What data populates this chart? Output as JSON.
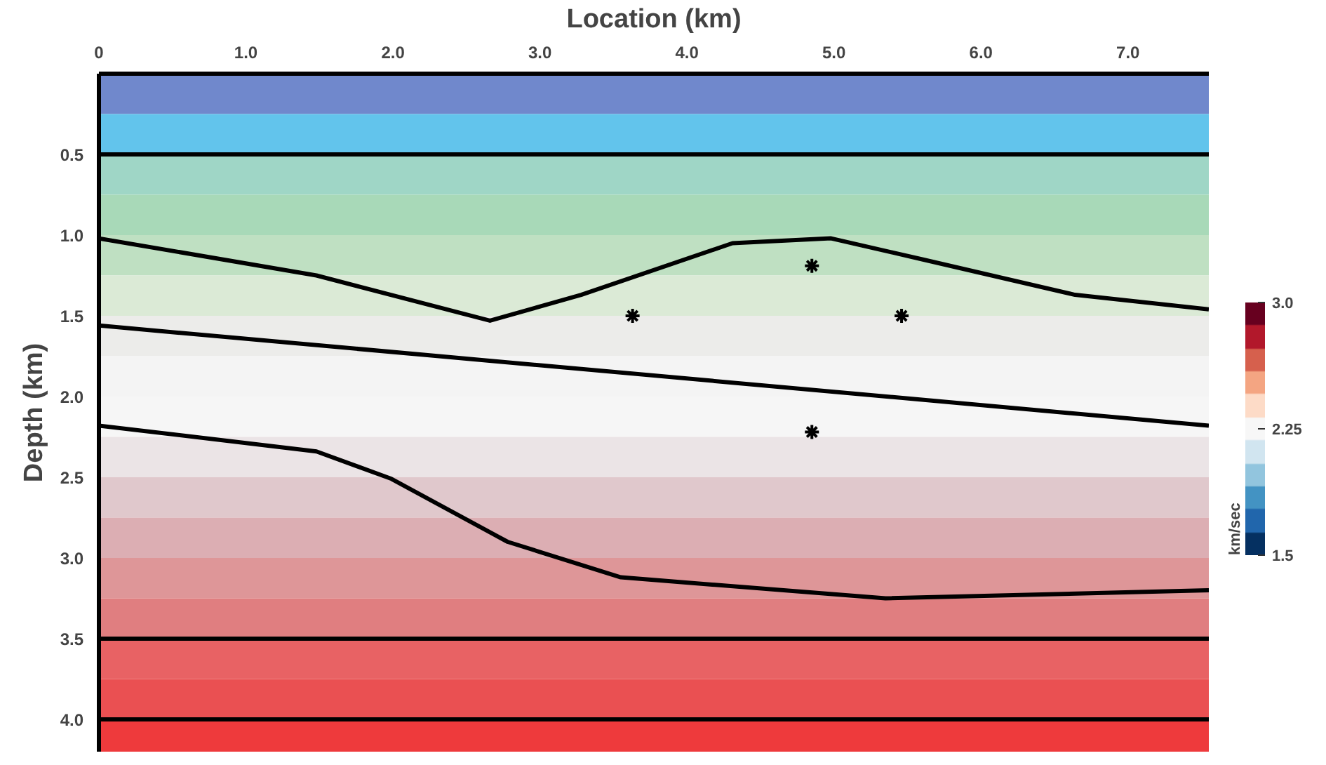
{
  "chart_data": {
    "type": "line",
    "xlabel": "Location (km)",
    "ylabel": "Depth (km)",
    "clabel": "km/sec",
    "xlim": [
      0,
      7.55
    ],
    "ylim": [
      4.2,
      0
    ],
    "xticks": [
      {
        "value": 0,
        "label": "0"
      },
      {
        "value": 1,
        "label": "1.0"
      },
      {
        "value": 2,
        "label": "2.0"
      },
      {
        "value": 3,
        "label": "3.0"
      },
      {
        "value": 4,
        "label": "4.0"
      },
      {
        "value": 5,
        "label": "5.0"
      },
      {
        "value": 6,
        "label": "6.0"
      },
      {
        "value": 7,
        "label": "7.0"
      }
    ],
    "yticks": [
      0.5,
      {
        "value": 1,
        "label": "1.0"
      },
      1.5,
      {
        "value": 2,
        "label": "2.0"
      },
      2.5,
      {
        "value": 3,
        "label": "3.0"
      },
      3.5,
      {
        "value": 4,
        "label": "4.0"
      }
    ],
    "clim": [
      1.5,
      3.0
    ],
    "cticks": [
      1.5,
      2.25,
      {
        "value": 3,
        "label": "3.0"
      }
    ],
    "grid": false,
    "line_style": "solid",
    "series": [
      {
        "color": "#000000",
        "x": [
          0,
          7.55
        ],
        "values": [
          0.5,
          0.5
        ]
      },
      {
        "color": "#000000",
        "x": [
          0,
          1.48,
          2.66,
          3.28,
          4.31,
          4.98,
          5.6,
          6.64,
          7.55
        ],
        "values": [
          1.02,
          1.25,
          1.53,
          1.37,
          1.05,
          1.02,
          1.15,
          1.37,
          1.46
        ]
      },
      {
        "color": "#000000",
        "x": [
          0,
          7.55
        ],
        "values": [
          1.56,
          2.18
        ]
      },
      {
        "color": "#000000",
        "x": [
          0,
          1.48,
          1.99,
          2.78,
          3.55,
          5.35,
          7.55
        ],
        "values": [
          2.18,
          2.34,
          2.51,
          2.9,
          3.12,
          3.25,
          3.2
        ]
      },
      {
        "color": "#000000",
        "x": [
          0,
          7.55
        ],
        "values": [
          3.5,
          3.5
        ]
      },
      {
        "color": "#000000",
        "x": [
          0,
          7.55
        ],
        "values": [
          4.0,
          4.0
        ]
      },
      {
        "type": "scatter",
        "marker": "cross",
        "color": "#000000",
        "x": [
          4.85,
          3.63,
          5.46,
          4.85
        ],
        "values": [
          1.19,
          1.5,
          1.5,
          2.22
        ]
      }
    ],
    "bands": [
      {
        "axis": "y",
        "from": 0,
        "to": 0.25,
        "color": "#7088cc"
      },
      {
        "axis": "y",
        "from": 0.25,
        "to": 0.5,
        "color": "#62c4ec"
      },
      {
        "axis": "y",
        "from": 0.5,
        "to": 0.75,
        "color": "#9fd6c6"
      },
      {
        "axis": "y",
        "from": 0.75,
        "to": 1.0,
        "color": "#a8d9b8"
      },
      {
        "axis": "y",
        "from": 1.0,
        "to": 1.25,
        "color": "#bfe0c2"
      },
      {
        "axis": "y",
        "from": 1.25,
        "to": 1.5,
        "color": "#dbead6"
      },
      {
        "axis": "y",
        "from": 1.5,
        "to": 1.75,
        "color": "#ececea"
      },
      {
        "axis": "y",
        "from": 1.75,
        "to": 2.0,
        "color": "#f4f4f4"
      },
      {
        "axis": "y",
        "from": 2.0,
        "to": 2.25,
        "color": "#f6f6f6"
      },
      {
        "axis": "y",
        "from": 2.25,
        "to": 2.5,
        "color": "#ebe4e6"
      },
      {
        "axis": "y",
        "from": 2.5,
        "to": 2.75,
        "color": "#e0c8cc"
      },
      {
        "axis": "y",
        "from": 2.75,
        "to": 3.0,
        "color": "#dcaeb3"
      },
      {
        "axis": "y",
        "from": 3.0,
        "to": 3.25,
        "color": "#de9698"
      },
      {
        "axis": "y",
        "from": 3.25,
        "to": 3.5,
        "color": "#e07e80"
      },
      {
        "axis": "y",
        "from": 3.5,
        "to": 3.75,
        "color": "#e86264"
      },
      {
        "axis": "y",
        "from": 3.75,
        "to": 4.0,
        "color": "#ea5052"
      },
      {
        "axis": "y",
        "from": 4.0,
        "to": 4.2,
        "color": "#ee3a3c"
      }
    ]
  }
}
